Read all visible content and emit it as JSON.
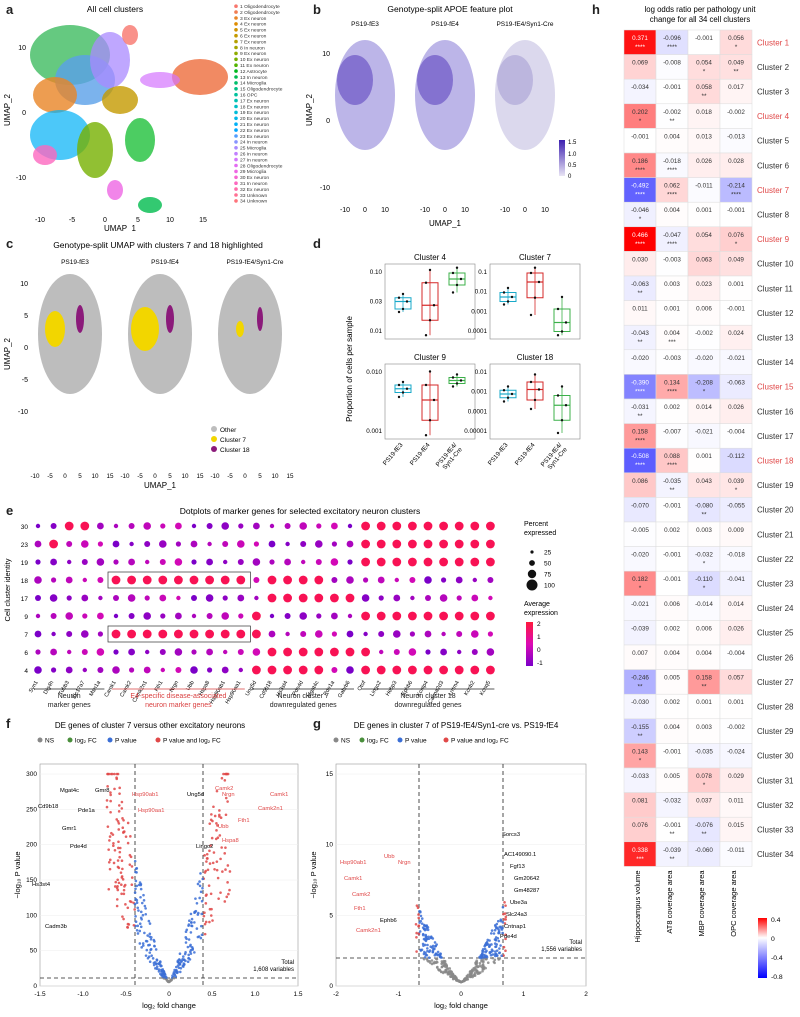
{
  "panel_labels": [
    "a",
    "b",
    "c",
    "d",
    "e",
    "f",
    "g",
    "h"
  ],
  "panel_a": {
    "title": "All cell clusters",
    "xlabel": "UMAP_1",
    "ylabel": "UMAP_2",
    "xticks": [
      "-10",
      "-5",
      "0",
      "5",
      "10",
      "15"
    ],
    "yticks": [
      "10",
      "0",
      "-10"
    ],
    "legend": [
      {
        "label": "1 Oligodendrocyte",
        "color": "#f8766d"
      },
      {
        "label": "2 Oligodendrocyte",
        "color": "#f07d52"
      },
      {
        "label": "3 Ex neuron",
        "color": "#e88526"
      },
      {
        "label": "4 Ex neuron",
        "color": "#de8c00"
      },
      {
        "label": "5 Ex neuron",
        "color": "#d19300"
      },
      {
        "label": "6 Ex neuron",
        "color": "#c49a00"
      },
      {
        "label": "7 Ex neuron",
        "color": "#b5a000"
      },
      {
        "label": "8 In neuron",
        "color": "#a3a500"
      },
      {
        "label": "9 Ex neuron",
        "color": "#8fab00"
      },
      {
        "label": "10 Ex neuron",
        "color": "#76b000"
      },
      {
        "label": "11 Ex neuron",
        "color": "#53b400"
      },
      {
        "label": "12 Astrocyte",
        "color": "#00b81f"
      },
      {
        "label": "13 In neuron",
        "color": "#00bb4e"
      },
      {
        "label": "14 Microglia",
        "color": "#00be6b"
      },
      {
        "label": "15 Oligodendrocyte",
        "color": "#00c085"
      },
      {
        "label": "16 OPC",
        "color": "#00c19c"
      },
      {
        "label": "17 Ex neuron",
        "color": "#00c1b2"
      },
      {
        "label": "18 Ex neuron",
        "color": "#00bfc6"
      },
      {
        "label": "19 Ex neuron",
        "color": "#00bcd8"
      },
      {
        "label": "20 Ex neuron",
        "color": "#00b7e8"
      },
      {
        "label": "21 Ex neuron",
        "color": "#00b0f6"
      },
      {
        "label": "22 Ex neuron",
        "color": "#00a7ff"
      },
      {
        "label": "23 Ex neuron",
        "color": "#529eff"
      },
      {
        "label": "24 In neuron",
        "color": "#8794ff"
      },
      {
        "label": "25 Microglia",
        "color": "#a98aff"
      },
      {
        "label": "26 In neuron",
        "color": "#c17fff"
      },
      {
        "label": "27 In neuron",
        "color": "#d475fe"
      },
      {
        "label": "28 Oligodendrocyte",
        "color": "#e36cf2"
      },
      {
        "label": "29 Microglia",
        "color": "#ee67e3"
      },
      {
        "label": "30 Ex neuron",
        "color": "#f766d2"
      },
      {
        "label": "31 In neuron",
        "color": "#fc68bf"
      },
      {
        "label": "32 Ex neuron",
        "color": "#ff6caa"
      },
      {
        "label": "33 Unknown",
        "color": "#ff7093"
      },
      {
        "label": "34 Unknown",
        "color": "#fe737b"
      }
    ]
  },
  "panel_b": {
    "title": "Genotype-split APOE feature plot",
    "subtitles": [
      "PS19-fE3",
      "PS19-fE4",
      "PS19-fE4/Syn1-Cre"
    ],
    "xlabel": "UMAP_1",
    "ylabel": "UMAP_2",
    "xticks": [
      "-10",
      "0",
      "10"
    ],
    "yticks": [
      "10",
      "0",
      "-10"
    ],
    "colorbar_ticks": [
      "1.5",
      "1.0",
      "0.5",
      "0"
    ]
  },
  "panel_c": {
    "title": "Genotype-split UMAP with clusters 7 and 18 highlighted",
    "subtitles": [
      "PS19-fE3",
      "PS19-fE4",
      "PS19-fE4/Syn1-Cre"
    ],
    "xlabel": "UMAP_1",
    "ylabel": "UMAP_2",
    "xticks": [
      "-10",
      "-5",
      "0",
      "5",
      "10",
      "15",
      "-10",
      "-5",
      "0",
      "5",
      "10",
      "15",
      "-10",
      "-5",
      "0",
      "5",
      "10",
      "15"
    ],
    "yticks": [
      "10",
      "5",
      "0",
      "-5",
      "-10"
    ],
    "legend": [
      {
        "label": "Other",
        "color": "#bdbdbd"
      },
      {
        "label": "Cluster 7",
        "color": "#f2d600"
      },
      {
        "label": "Cluster 18",
        "color": "#8b1a7a"
      }
    ]
  },
  "panel_d": {
    "ylabel": "Proportion of cells per sample",
    "xcats": [
      "PS19-fE3",
      "PS19-fE4",
      "PS19-fE4/\nSyn1-Cre"
    ],
    "subplots": [
      {
        "title": "Cluster 4",
        "yticks": [
          "0.10",
          "0.03",
          "0.01"
        ],
        "boxes": [
          {
            "q1": 0.4,
            "med": 0.5,
            "q3": 0.55,
            "lo": 0.36,
            "hi": 0.6
          },
          {
            "q1": 0.25,
            "med": 0.45,
            "q3": 0.75,
            "lo": 0.05,
            "hi": 0.92
          },
          {
            "q1": 0.72,
            "med": 0.8,
            "q3": 0.88,
            "lo": 0.62,
            "hi": 0.95
          }
        ]
      },
      {
        "title": "Cluster 7",
        "yticks": [
          "0.1",
          "0.01",
          "0.001",
          "0.0001"
        ],
        "boxes": [
          {
            "q1": 0.5,
            "med": 0.56,
            "q3": 0.62,
            "lo": 0.46,
            "hi": 0.68
          },
          {
            "q1": 0.55,
            "med": 0.76,
            "q3": 0.88,
            "lo": 0.32,
            "hi": 0.95
          },
          {
            "q1": 0.1,
            "med": 0.22,
            "q3": 0.4,
            "lo": 0.05,
            "hi": 0.56
          }
        ]
      },
      {
        "title": "Cluster 9",
        "yticks": [
          "0.010",
          "0.001"
        ],
        "boxes": [
          {
            "q1": 0.62,
            "med": 0.67,
            "q3": 0.72,
            "lo": 0.56,
            "hi": 0.76
          },
          {
            "q1": 0.25,
            "med": 0.52,
            "q3": 0.72,
            "lo": 0.05,
            "hi": 0.9
          },
          {
            "q1": 0.74,
            "med": 0.78,
            "q3": 0.82,
            "lo": 0.7,
            "hi": 0.86
          }
        ]
      },
      {
        "title": "Cluster 18",
        "yticks": [
          "0.01",
          "0.001",
          "0.0001",
          "0.00001"
        ],
        "boxes": [
          {
            "q1": 0.55,
            "med": 0.6,
            "q3": 0.65,
            "lo": 0.5,
            "hi": 0.7
          },
          {
            "q1": 0.52,
            "med": 0.66,
            "q3": 0.76,
            "lo": 0.4,
            "hi": 0.86
          },
          {
            "q1": 0.25,
            "med": 0.45,
            "q3": 0.58,
            "lo": 0.08,
            "hi": 0.7
          }
        ]
      }
    ]
  },
  "panel_e": {
    "title": "Dotplots of marker genes for selected excitatory neuron clusters",
    "ylabel": "Cell cluster identity",
    "clusters": [
      "30",
      "23",
      "19",
      "18",
      "17",
      "9",
      "7",
      "6",
      "4"
    ],
    "genes": [
      "Syn1",
      "Dlg4h",
      "Tubb3",
      "Slc17a7",
      "Msn1a",
      "Camk1",
      "Camk2",
      "Camk2n1",
      "Fth1",
      "Nrgn",
      "Ubb",
      "Hspa8",
      "Hsp90ab1",
      "Hsp90aa1",
      "Ung5d",
      "Cd9b18",
      "Hs3st4",
      "Pde4d",
      "Mgat4c",
      "Pde1a",
      "Gabrb6",
      "Otof",
      "Lingo2",
      "Hebp3",
      "Ephb6",
      "Kcnip4",
      "Cacna2d3",
      "Lrrtm4",
      "Kcnb2",
      "Kcnq5"
    ],
    "group_labels": [
      {
        "text": "Neuron\nmarker genes",
        "color": "#222"
      },
      {
        "text": "E4-specific disease-associated\nneuron marker genes",
        "color": "#d94040"
      },
      {
        "text": "Neuron cluster 7\ndownregulated genes",
        "color": "#222"
      },
      {
        "text": "Neuron cluster 18\ndownregulated genes",
        "color": "#222"
      }
    ],
    "size_legend_title": "Percent\nexpressed",
    "size_legend": [
      "25",
      "50",
      "75",
      "100"
    ],
    "color_legend_title": "Average\nexpression",
    "color_legend_ticks": [
      "2",
      "1",
      "0",
      "-1"
    ]
  },
  "panel_f": {
    "title": "DE genes of cluster 7 versus other excitatory neurons",
    "legend": [
      {
        "label": "NS",
        "color": "#888888"
      },
      {
        "label": "log₂ FC",
        "color": "#4a8f3c"
      },
      {
        "label": "P value",
        "color": "#3b6fd6"
      },
      {
        "label": "P value and log₂ FC",
        "color": "#e04848"
      }
    ],
    "xlabel": "log₂ fold change",
    "ylabel": "−log₁₀ P value",
    "xticks": [
      "-1.5",
      "-1.0",
      "-0.5",
      "0",
      "0.5",
      "1.0",
      "1.5"
    ],
    "yticks": [
      "0",
      "50",
      "100",
      "150",
      "200",
      "250",
      "300"
    ],
    "total_text": "Total\n1,608 variables",
    "gene_labels_black": [
      "Mgat4c",
      "Gmr8",
      "Cd9b18",
      "Pde1a",
      "Gmr1",
      "Pde4d",
      "Hs3st4",
      "Cadm3b"
    ],
    "gene_labels_red": [
      "Hsp90ab1",
      "Camk2",
      "Nrgn",
      "Camk1",
      "Hsp90aa1",
      "Camk2n1",
      "Fth1",
      "Ubb",
      "Hspa8"
    ],
    "gene_labels_black_right": [
      "Ung5d",
      "Lingo2"
    ]
  },
  "panel_g": {
    "title": "DE genes in cluster 7 of PS19-fE4/Syn1-cre vs. PS19-fE4",
    "legend": [
      {
        "label": "NS",
        "color": "#888888"
      },
      {
        "label": "log₂ FC",
        "color": "#4a8f3c"
      },
      {
        "label": "P value",
        "color": "#3b6fd6"
      },
      {
        "label": "P value and log₂ FC",
        "color": "#e04848"
      }
    ],
    "xlabel": "log₂ fold change",
    "ylabel": "−log₁₀ P value",
    "xticks": [
      "-2",
      "-1",
      "0",
      "1",
      "2"
    ],
    "yticks": [
      "0",
      "5",
      "10",
      "15"
    ],
    "total_text": "Total\n1,556 variables",
    "gene_labels_red": [
      "Hsp90ab1",
      "Ubb",
      "Nrgn",
      "Camk1",
      "Camk2",
      "Fth1",
      "Camk2n1"
    ],
    "gene_labels_black_left": [
      "Ephb6"
    ],
    "gene_labels_black_right": [
      "Sorcs3",
      "AC149090.1",
      "Fgf13",
      "Gm20642",
      "Gm48287",
      "Ube3a",
      "Slc24a3",
      "Cntnap1",
      "Pde4d"
    ]
  },
  "panel_h": {
    "title": "log odds ratio per pathology unit\nchange for all 34 cell clusters",
    "columns": [
      "Hippocampus volume",
      "AT8 coverage area",
      "MBP coverage area",
      "OPC coverage area"
    ],
    "colorbar_ticks": [
      "0.4",
      "0",
      "-0.4",
      "-0.8"
    ],
    "rows": [
      {
        "label": "Cluster 1",
        "red": true,
        "v": [
          "0.371",
          "-0.096",
          "-0.001",
          "0.056"
        ],
        "s": [
          "****",
          "****",
          "",
          "*"
        ]
      },
      {
        "label": "Cluster 2",
        "red": false,
        "v": [
          "0.069",
          "-0.008",
          "0.054",
          "0.049"
        ],
        "s": [
          "",
          "",
          "*",
          "**"
        ]
      },
      {
        "label": "Cluster 3",
        "red": false,
        "v": [
          "-0.034",
          "-0.001",
          "0.058",
          "0.017"
        ],
        "s": [
          "",
          "",
          "**",
          ""
        ]
      },
      {
        "label": "Cluster 4",
        "red": true,
        "v": [
          "0.202",
          "-0.002",
          "0.018",
          "-0.002"
        ],
        "s": [
          "*",
          "**",
          "",
          ""
        ]
      },
      {
        "label": "Cluster 5",
        "red": false,
        "v": [
          "-0.001",
          "0.004",
          "0.013",
          "-0.013"
        ],
        "s": [
          "",
          "",
          "",
          ""
        ]
      },
      {
        "label": "Cluster 6",
        "red": false,
        "v": [
          "0.186",
          "-0.018",
          "0.026",
          "0.028"
        ],
        "s": [
          "****",
          "****",
          "",
          ""
        ]
      },
      {
        "label": "Cluster 7",
        "red": true,
        "v": [
          "-0.492",
          "0.062",
          "-0.011",
          "-0.214"
        ],
        "s": [
          "****",
          "****",
          "",
          "****"
        ]
      },
      {
        "label": "Cluster 8",
        "red": false,
        "v": [
          "-0.046",
          "0.004",
          "0.001",
          "-0.001"
        ],
        "s": [
          "*",
          "",
          "",
          ""
        ]
      },
      {
        "label": "Cluster 9",
        "red": true,
        "v": [
          "0.466",
          "-0.047",
          "0.054",
          "0.076"
        ],
        "s": [
          "****",
          "****",
          "",
          "*"
        ]
      },
      {
        "label": "Cluster 10",
        "red": false,
        "v": [
          "0.030",
          "-0.003",
          "0.063",
          "0.049"
        ],
        "s": [
          "",
          "",
          "",
          ""
        ]
      },
      {
        "label": "Cluster 11",
        "red": false,
        "v": [
          "-0.063",
          "0.003",
          "0.023",
          "0.001"
        ],
        "s": [
          "**",
          "",
          "",
          ""
        ]
      },
      {
        "label": "Cluster 12",
        "red": false,
        "v": [
          "0.011",
          "0.001",
          "0.006",
          "-0.001"
        ],
        "s": [
          "",
          "",
          "",
          ""
        ]
      },
      {
        "label": "Cluster 13",
        "red": false,
        "v": [
          "-0.043",
          "0.004",
          "-0.002",
          "0.024"
        ],
        "s": [
          "**",
          "***",
          "",
          ""
        ]
      },
      {
        "label": "Cluster 14",
        "red": false,
        "v": [
          "-0.020",
          "-0.003",
          "-0.020",
          "-0.021"
        ],
        "s": [
          "",
          "",
          "",
          ""
        ]
      },
      {
        "label": "Cluster 15",
        "red": true,
        "v": [
          "-0.390",
          "0.134",
          "-0.208",
          "-0.063"
        ],
        "s": [
          "****",
          "****",
          "*",
          ""
        ]
      },
      {
        "label": "Cluster 16",
        "red": false,
        "v": [
          "-0.031",
          "0.002",
          "0.014",
          "0.026"
        ],
        "s": [
          "**",
          "",
          "",
          ""
        ]
      },
      {
        "label": "Cluster 17",
        "red": false,
        "v": [
          "0.158",
          "-0.007",
          "-0.021",
          "-0.004"
        ],
        "s": [
          "****",
          "",
          "",
          ""
        ]
      },
      {
        "label": "Cluster 18",
        "red": true,
        "v": [
          "-0.508",
          "0.088",
          "0.001",
          "-0.112"
        ],
        "s": [
          "****",
          "****",
          "",
          ""
        ]
      },
      {
        "label": "Cluster 19",
        "red": false,
        "v": [
          "0.086",
          "-0.035",
          "0.043",
          "0.039"
        ],
        "s": [
          "",
          "**",
          "",
          "*"
        ]
      },
      {
        "label": "Cluster 20",
        "red": false,
        "v": [
          "-0.070",
          "-0.001",
          "-0.080",
          "-0.055"
        ],
        "s": [
          "",
          "",
          "**",
          ""
        ]
      },
      {
        "label": "Cluster 21",
        "red": false,
        "v": [
          "-0.005",
          "0.002",
          "0.003",
          "0.009"
        ],
        "s": [
          "",
          "",
          "",
          ""
        ]
      },
      {
        "label": "Cluster 22",
        "red": false,
        "v": [
          "-0.020",
          "-0.001",
          "-0.032",
          "-0.018"
        ],
        "s": [
          "",
          "",
          "*",
          ""
        ]
      },
      {
        "label": "Cluster 23",
        "red": false,
        "v": [
          "0.182",
          "-0.001",
          "-0.110",
          "-0.041"
        ],
        "s": [
          "*",
          "",
          "*",
          ""
        ]
      },
      {
        "label": "Cluster 24",
        "red": false,
        "v": [
          "-0.021",
          "0.006",
          "-0.014",
          "0.014"
        ],
        "s": [
          "",
          "",
          "",
          ""
        ]
      },
      {
        "label": "Cluster 25",
        "red": false,
        "v": [
          "-0.039",
          "0.002",
          "0.006",
          "0.026"
        ],
        "s": [
          "",
          "",
          "",
          ""
        ]
      },
      {
        "label": "Cluster 26",
        "red": false,
        "v": [
          "0.007",
          "0.004",
          "0.004",
          "-0.004"
        ],
        "s": [
          "",
          "",
          "",
          ""
        ]
      },
      {
        "label": "Cluster 27",
        "red": false,
        "v": [
          "-0.246",
          "0.005",
          "0.158",
          "0.057"
        ],
        "s": [
          "**",
          "",
          "**",
          ""
        ]
      },
      {
        "label": "Cluster 28",
        "red": false,
        "v": [
          "-0.030",
          "0.002",
          "0.001",
          "0.001"
        ],
        "s": [
          "",
          "",
          "",
          ""
        ]
      },
      {
        "label": "Cluster 29",
        "red": false,
        "v": [
          "-0.155",
          "0.004",
          "0.003",
          "-0.002"
        ],
        "s": [
          "**",
          "",
          "",
          ""
        ]
      },
      {
        "label": "Cluster 30",
        "red": false,
        "v": [
          "0.143",
          "-0.001",
          "-0.035",
          "-0.024"
        ],
        "s": [
          "*",
          "",
          "",
          ""
        ]
      },
      {
        "label": "Cluster 31",
        "red": false,
        "v": [
          "-0.033",
          "0.005",
          "0.078",
          "0.029"
        ],
        "s": [
          "",
          "",
          "*",
          ""
        ]
      },
      {
        "label": "Cluster 32",
        "red": false,
        "v": [
          "0.081",
          "-0.032",
          "0.037",
          "0.011"
        ],
        "s": [
          "",
          "",
          "",
          ""
        ]
      },
      {
        "label": "Cluster 33",
        "red": false,
        "v": [
          "0.076",
          "-0.001",
          "-0.076",
          "0.015"
        ],
        "s": [
          "",
          "**",
          "**",
          ""
        ]
      },
      {
        "label": "Cluster 34",
        "red": false,
        "v": [
          "0.338",
          "-0.039",
          "-0.060",
          "-0.011"
        ],
        "s": [
          "***",
          "**",
          "",
          ""
        ]
      }
    ]
  }
}
